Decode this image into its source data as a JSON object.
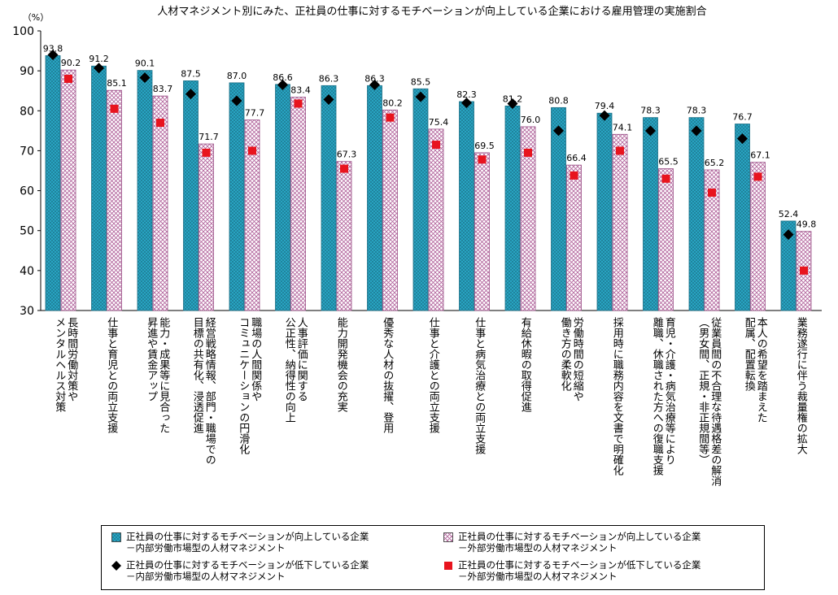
{
  "chart_data": {
    "type": "bar",
    "title": "人材マネジメント別にみた、正社員の仕事に対するモチベーションが向上している企業における雇用管理の実施割合",
    "unit_label": "（%）",
    "ylim": [
      30,
      100
    ],
    "yticks": [
      30,
      40,
      50,
      60,
      70,
      80,
      90,
      100
    ],
    "categories": [
      [
        "長時間労働対策や",
        "メンタルヘルス対策"
      ],
      [
        "仕事と育児との両立支援"
      ],
      [
        "能力・成果等に見合った",
        "昇進や賃金アップ"
      ],
      [
        "経営戦略情報、部門・職場での",
        "目標の共有化、浸透促進"
      ],
      [
        "職場の人間関係や",
        "コミュニケーションの円滑化"
      ],
      [
        "人事評価に関する",
        "公正性、納得性の向上"
      ],
      [
        "能力開発機会の充実"
      ],
      [
        "優秀な人材の抜擢、登用"
      ],
      [
        "仕事と介護との両立支援"
      ],
      [
        "仕事と病気治療との両立支援"
      ],
      [
        "有給休暇の取得促進"
      ],
      [
        "労働時間の短縮や",
        "働き方の柔軟化"
      ],
      [
        "採用時に職務内容を文書で明確化"
      ],
      [
        "育児・介護・病気治療等により",
        "離職、休職された方への復職支援"
      ],
      [
        "従業員間の不合理な待遇格差の解消",
        "（男女間、正規・非正規間等）"
      ],
      [
        "本人の希望を踏まえた",
        "配属、配置転換"
      ],
      [
        "業務遂行に伴う裁量権の拡大"
      ]
    ],
    "series": [
      {
        "name": "正社員の仕事に対するモチベーションが向上している企業－内部労働市場型の人材マネジメント",
        "legend_lines": [
          "正社員の仕事に対するモチベーションが向上している企業",
          "－内部労働市場型の人材マネジメント"
        ],
        "mark": "bar",
        "color": "#29a8c6",
        "values": [
          93.8,
          91.2,
          90.1,
          87.5,
          87.0,
          86.6,
          86.3,
          86.3,
          85.5,
          82.3,
          81.2,
          80.8,
          79.4,
          78.3,
          78.3,
          76.7,
          52.4
        ],
        "labels": [
          "93.8",
          "91.2",
          "90.1",
          "87.5",
          "87.0",
          "86.6",
          "86.3",
          "86.3",
          "85.5",
          "82.3",
          "81.2",
          "80.8",
          "79.4",
          "78.3",
          "78.3",
          "76.7",
          "52.4"
        ]
      },
      {
        "name": "正社員の仕事に対するモチベーションが向上している企業－外部労働市場型の人材マネジメント",
        "legend_lines": [
          "正社員の仕事に対するモチベーションが向上している企業",
          "－外部労働市場型の人材マネジメント"
        ],
        "mark": "bar",
        "color": "#b0609a",
        "values": [
          90.2,
          85.1,
          83.7,
          71.7,
          77.7,
          83.4,
          67.3,
          80.2,
          75.4,
          69.5,
          76.0,
          66.4,
          74.1,
          65.5,
          65.2,
          67.1,
          49.8
        ],
        "labels": [
          "90.2",
          "85.1",
          "83.7",
          "71.7",
          "77.7",
          "83.4",
          "67.3",
          "80.2",
          "75.4",
          "69.5",
          "76.0",
          "66.4",
          "74.1",
          "65.5",
          "65.2",
          "67.1",
          "49.8"
        ]
      },
      {
        "name": "正社員の仕事に対するモチベーションが低下している企業－内部労働市場型の人材マネジメント",
        "legend_lines": [
          "正社員の仕事に対するモチベーションが低下している企業",
          "－内部労働市場型の人材マネジメント"
        ],
        "mark": "diamond",
        "color": "#000000",
        "values": [
          94.0,
          90.7,
          88.3,
          84.2,
          82.5,
          86.5,
          82.8,
          86.5,
          83.5,
          82.0,
          81.8,
          75.0,
          78.8,
          75.0,
          75.0,
          73.0,
          49.0
        ]
      },
      {
        "name": "正社員の仕事に対するモチベーションが低下している企業－外部労働市場型の人材マネジメント",
        "legend_lines": [
          "正社員の仕事に対するモチベーションが低下している企業",
          "－外部労働市場型の人材マネジメント"
        ],
        "mark": "square",
        "color": "#e8141e",
        "values": [
          88.0,
          80.5,
          77.0,
          69.5,
          70.0,
          81.8,
          65.5,
          78.3,
          71.5,
          67.8,
          69.5,
          63.8,
          70.0,
          63.0,
          59.5,
          63.5,
          40.0
        ]
      }
    ],
    "grid": false,
    "legend_position": "bottom"
  }
}
